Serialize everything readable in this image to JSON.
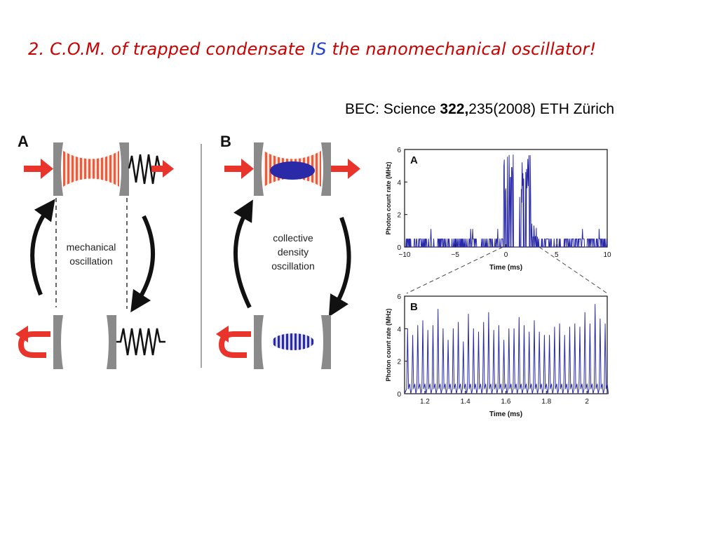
{
  "title": {
    "part1": "2. C.O.M. of trapped condensate ",
    "emphasis": "IS",
    "part2": " the nanomechanical oscillator!",
    "color": "#cc0000",
    "emphasis_color": "#1f3fcc"
  },
  "citation": {
    "prefix": "BEC:  Science ",
    "volume": "322,",
    "suffix": "235(2008) ETH Zürich"
  },
  "schematic": {
    "panel_a": {
      "letter": "A",
      "label_line1": "mechanical",
      "label_line2": "oscillation"
    },
    "panel_b": {
      "letter": "B",
      "label_line1": "collective",
      "label_line2": "density",
      "label_line3": "oscillation"
    },
    "colors": {
      "arrow_red": "#e8342a",
      "mirror_gray": "#8a8a8a",
      "cloud_blue": "#2a2aa8",
      "fringe_red": "#f05a3c"
    }
  },
  "chart_data": [
    {
      "type": "line",
      "panel_label": "A",
      "xlabel": "Time (ms)",
      "ylabel": "Photon count rate (MHz)",
      "xlim": [
        -10,
        10
      ],
      "ylim": [
        0,
        6
      ],
      "xticks": [
        -10,
        -5,
        0,
        5,
        10
      ],
      "yticks": [
        0,
        2,
        4,
        6
      ],
      "xtick_labels": [
        "−10",
        "−5",
        "0",
        "5",
        "10"
      ],
      "ytick_labels": [
        "0",
        "2",
        "4",
        "6"
      ],
      "color": "#2a2aa8",
      "description_points": {
        "x": [
          -10,
          -8,
          -6,
          -4,
          -2,
          -1,
          -0.2,
          0,
          0.5,
          1,
          1.5,
          2,
          2.5,
          3,
          4,
          6,
          8,
          10
        ],
        "y": [
          0.5,
          0.5,
          0.5,
          0.5,
          0.5,
          1.2,
          0.6,
          4.8,
          5.2,
          5.6,
          5.3,
          4.2,
          1.2,
          0.6,
          0.9,
          0.5,
          0.5,
          0.5
        ]
      }
    },
    {
      "type": "line",
      "panel_label": "B",
      "xlabel": "Time (ms)",
      "ylabel": "Photon count rate (MHz)",
      "xlim": [
        1.1,
        2.1
      ],
      "ylim": [
        0,
        6
      ],
      "xticks": [
        1.2,
        1.4,
        1.6,
        1.8,
        2.0
      ],
      "yticks": [
        0,
        2,
        4,
        6
      ],
      "xtick_labels": [
        "1.2",
        "1.4",
        "1.6",
        "1.8",
        "2"
      ],
      "ytick_labels": [
        "0",
        "2",
        "4",
        "6"
      ],
      "color": "#2a2aa8",
      "peaks": {
        "x": [
          1.115,
          1.14,
          1.165,
          1.19,
          1.215,
          1.24,
          1.265,
          1.29,
          1.315,
          1.34,
          1.365,
          1.39,
          1.415,
          1.44,
          1.465,
          1.49,
          1.515,
          1.54,
          1.565,
          1.59,
          1.615,
          1.64,
          1.665,
          1.69,
          1.715,
          1.74,
          1.765,
          1.79,
          1.815,
          1.84,
          1.865,
          1.89,
          1.915,
          1.94,
          1.965,
          1.99,
          2.015,
          2.04,
          2.065,
          2.09
        ],
        "y": [
          4.0,
          3.6,
          4.2,
          4.5,
          3.9,
          4.2,
          5.2,
          4.0,
          3.3,
          4.0,
          4.4,
          3.2,
          4.9,
          4.0,
          3.8,
          4.4,
          5.0,
          3.9,
          4.2,
          3.3,
          4.0,
          4.0,
          4.7,
          4.2,
          3.8,
          4.5,
          3.8,
          3.6,
          3.6,
          4.1,
          4.3,
          3.6,
          4.1,
          4.3,
          4.1,
          5.0,
          4.3,
          5.5,
          4.6,
          4.3
        ]
      }
    }
  ]
}
